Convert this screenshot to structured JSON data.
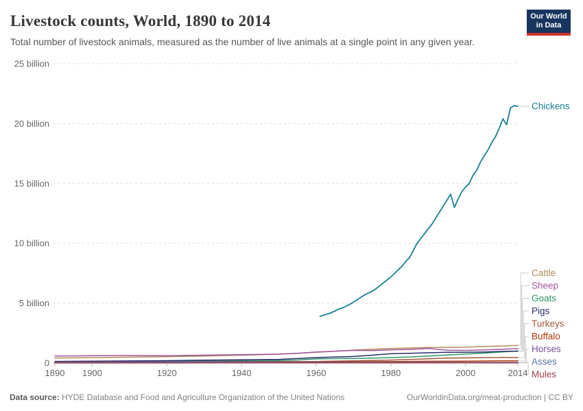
{
  "header": {
    "title": "Livestock counts, World, 1890 to 2014",
    "subtitle": "Total number of livestock animals, measured as the number of live animals at a single point in any given year."
  },
  "logo": {
    "line1": "Our World",
    "line2": "in Data",
    "bg_color": "#18355e",
    "bar_color": "#d0342c"
  },
  "chart_data": {
    "type": "line",
    "title": "Livestock counts, World, 1890 to 2014",
    "xlabel": "",
    "ylabel": "",
    "unit": "billion animals",
    "xlim": [
      1890,
      2014
    ],
    "ylim": [
      0,
      25
    ],
    "grid": "dashed-horizontal",
    "legend_position": "right-of-line-ends",
    "xticks": [
      1890,
      1900,
      1920,
      1940,
      1960,
      1980,
      2000,
      2014
    ],
    "yticks": [
      {
        "value": 0,
        "label": "0"
      },
      {
        "value": 5,
        "label": "5 billion"
      },
      {
        "value": 10,
        "label": "10 billion"
      },
      {
        "value": 15,
        "label": "15 billion"
      },
      {
        "value": 20,
        "label": "20 billion"
      },
      {
        "value": 25,
        "label": "25 billion"
      }
    ],
    "series": [
      {
        "name": "Chickens",
        "color": "#177e91",
        "years": [
          1961,
          1962,
          1963,
          1964,
          1965,
          1966,
          1967,
          1968,
          1969,
          1970,
          1971,
          1972,
          1973,
          1974,
          1975,
          1976,
          1977,
          1978,
          1979,
          1980,
          1981,
          1982,
          1983,
          1984,
          1985,
          1986,
          1987,
          1988,
          1989,
          1990,
          1991,
          1992,
          1993,
          1994,
          1995,
          1996,
          1997,
          1998,
          1999,
          2000,
          2001,
          2002,
          2003,
          2004,
          2005,
          2006,
          2007,
          2008,
          2009,
          2010,
          2011,
          2012,
          2013,
          2014
        ],
        "values": [
          3.9,
          4.0,
          4.1,
          4.2,
          4.35,
          4.5,
          4.6,
          4.75,
          4.9,
          5.1,
          5.3,
          5.5,
          5.7,
          5.85,
          6.0,
          6.2,
          6.45,
          6.7,
          6.95,
          7.2,
          7.5,
          7.8,
          8.1,
          8.5,
          8.8,
          9.4,
          10.0,
          10.4,
          10.8,
          11.2,
          11.6,
          12.1,
          12.6,
          13.1,
          13.6,
          14.1,
          13.0,
          13.7,
          14.3,
          14.7,
          15.0,
          15.7,
          16.1,
          16.8,
          17.3,
          17.8,
          18.4,
          18.9,
          19.6,
          20.4,
          19.9,
          21.3,
          21.5,
          21.45
        ]
      },
      {
        "name": "Cattle",
        "color": "#b08c5b",
        "years": [
          1890,
          1900,
          1910,
          1920,
          1930,
          1940,
          1950,
          1955,
          1960,
          1965,
          1970,
          1975,
          1980,
          1985,
          1990,
          1995,
          2000,
          2005,
          2010,
          2014
        ],
        "values": [
          0.42,
          0.45,
          0.49,
          0.53,
          0.59,
          0.66,
          0.74,
          0.82,
          0.9,
          0.99,
          1.08,
          1.15,
          1.22,
          1.26,
          1.3,
          1.31,
          1.32,
          1.38,
          1.43,
          1.47
        ]
      },
      {
        "name": "Sheep",
        "color": "#a2559c",
        "years": [
          1890,
          1900,
          1910,
          1920,
          1930,
          1940,
          1950,
          1955,
          1960,
          1965,
          1970,
          1975,
          1980,
          1985,
          1990,
          1995,
          2000,
          2005,
          2010,
          2014
        ],
        "values": [
          0.59,
          0.61,
          0.63,
          0.62,
          0.66,
          0.7,
          0.75,
          0.82,
          0.92,
          0.99,
          1.06,
          1.04,
          1.1,
          1.14,
          1.21,
          1.08,
          1.06,
          1.1,
          1.15,
          1.2
        ]
      },
      {
        "name": "Goats",
        "color": "#2f9566",
        "years": [
          1890,
          1900,
          1910,
          1920,
          1930,
          1940,
          1950,
          1955,
          1960,
          1965,
          1970,
          1975,
          1980,
          1985,
          1990,
          1995,
          2000,
          2005,
          2010,
          2014
        ],
        "values": [
          0.12,
          0.13,
          0.14,
          0.15,
          0.17,
          0.19,
          0.21,
          0.26,
          0.35,
          0.37,
          0.38,
          0.41,
          0.46,
          0.51,
          0.59,
          0.67,
          0.75,
          0.83,
          0.93,
          1.01
        ]
      },
      {
        "name": "Pigs",
        "color": "#282e68",
        "years": [
          1890,
          1900,
          1910,
          1920,
          1930,
          1940,
          1950,
          1955,
          1960,
          1965,
          1970,
          1975,
          1980,
          1985,
          1990,
          1995,
          2000,
          2005,
          2010,
          2014
        ],
        "values": [
          0.14,
          0.16,
          0.18,
          0.2,
          0.24,
          0.27,
          0.31,
          0.38,
          0.46,
          0.51,
          0.55,
          0.66,
          0.78,
          0.82,
          0.86,
          0.9,
          0.9,
          0.92,
          0.97,
          0.99
        ]
      },
      {
        "name": "Turkeys",
        "color": "#a0573b",
        "years": [
          1961,
          1965,
          1970,
          1975,
          1980,
          1985,
          1990,
          1995,
          2000,
          2005,
          2010,
          2014
        ],
        "values": [
          0.14,
          0.16,
          0.19,
          0.22,
          0.25,
          0.3,
          0.36,
          0.41,
          0.43,
          0.45,
          0.47,
          0.46
        ]
      },
      {
        "name": "Buffalo",
        "color": "#b13507",
        "years": [
          1890,
          1900,
          1910,
          1920,
          1930,
          1940,
          1950,
          1960,
          1970,
          1980,
          1990,
          2000,
          2010,
          2014
        ],
        "values": [
          0.08,
          0.085,
          0.09,
          0.1,
          0.11,
          0.12,
          0.12,
          0.12,
          0.11,
          0.12,
          0.15,
          0.16,
          0.19,
          0.19
        ]
      },
      {
        "name": "Horses",
        "color": "#7a4fa0",
        "years": [
          1890,
          1900,
          1910,
          1920,
          1930,
          1940,
          1950,
          1960,
          1970,
          1980,
          1990,
          2000,
          2010,
          2014
        ],
        "values": [
          0.074,
          0.081,
          0.09,
          0.1,
          0.099,
          0.096,
          0.085,
          0.066,
          0.062,
          0.059,
          0.061,
          0.059,
          0.059,
          0.059
        ]
      },
      {
        "name": "Asses",
        "color": "#5878a3",
        "years": [
          1890,
          1900,
          1910,
          1920,
          1930,
          1940,
          1950,
          1960,
          1970,
          1980,
          1990,
          2000,
          2010,
          2014
        ],
        "values": [
          0.028,
          0.03,
          0.032,
          0.033,
          0.035,
          0.036,
          0.037,
          0.037,
          0.038,
          0.039,
          0.042,
          0.044,
          0.044,
          0.044
        ]
      },
      {
        "name": "Mules",
        "color": "#9e3e4a",
        "years": [
          1890,
          1900,
          1910,
          1920,
          1930,
          1940,
          1950,
          1960,
          1970,
          1980,
          1990,
          2000,
          2010,
          2014
        ],
        "values": [
          0.006,
          0.007,
          0.008,
          0.008,
          0.009,
          0.009,
          0.01,
          0.01,
          0.011,
          0.011,
          0.012,
          0.012,
          0.011,
          0.01
        ]
      }
    ]
  },
  "footer": {
    "source_bold": "Data source:",
    "source_rest": " HYDE Database and Food and Agriculture Organization of the United Nations",
    "right": "OurWorldinData.org/meat-production | CC BY"
  }
}
